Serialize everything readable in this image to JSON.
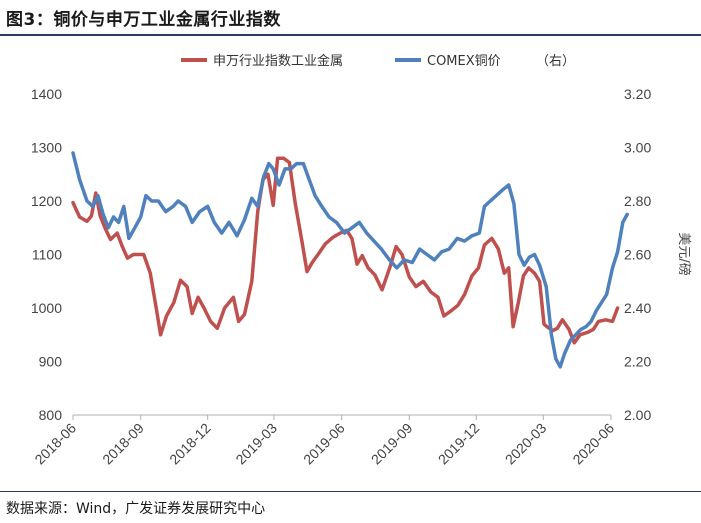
{
  "figure": {
    "title": "图3：铜价与申万工业金属行业指数",
    "source": "数据来源：Wind，广发证券发展研究中心"
  },
  "colors": {
    "series_left": "#c0504d",
    "series_right": "#4f81bd"
  },
  "chart_data": {
    "type": "line",
    "x_ticks": [
      "2018-06",
      "2018-09",
      "2018-12",
      "2019-03",
      "2019-06",
      "2019-09",
      "2019-12",
      "2020-03",
      "2020-06"
    ],
    "y_left": {
      "ticks": [
        "1400",
        "1300",
        "1200",
        "1100",
        "1000",
        "900",
        "800"
      ],
      "range": [
        800,
        1400
      ]
    },
    "y_right": {
      "ticks": [
        "3.20",
        "3.00",
        "2.80",
        "2.60",
        "2.40",
        "2.20",
        "2.00"
      ],
      "range": [
        2.0,
        3.2
      ],
      "label": "美元/磅"
    },
    "legend": {
      "placement": "top",
      "right_note": "（右）"
    },
    "series": [
      {
        "name": "申万行业指数工业金属",
        "axis": "left",
        "points": [
          [
            "2018-06-01",
            1197
          ],
          [
            "2018-06-10",
            1170
          ],
          [
            "2018-06-20",
            1162
          ],
          [
            "2018-06-26",
            1172
          ],
          [
            "2018-07-02",
            1215
          ],
          [
            "2018-07-08",
            1172
          ],
          [
            "2018-07-15",
            1148
          ],
          [
            "2018-07-22",
            1128
          ],
          [
            "2018-07-31",
            1140
          ],
          [
            "2018-08-07",
            1115
          ],
          [
            "2018-08-14",
            1093
          ],
          [
            "2018-08-22",
            1100
          ],
          [
            "2018-09-05",
            1100
          ],
          [
            "2018-09-14",
            1065
          ],
          [
            "2018-09-22",
            1000
          ],
          [
            "2018-09-28",
            950
          ],
          [
            "2018-10-06",
            985
          ],
          [
            "2018-10-16",
            1010
          ],
          [
            "2018-10-25",
            1052
          ],
          [
            "2018-11-03",
            1040
          ],
          [
            "2018-11-10",
            990
          ],
          [
            "2018-11-18",
            1020
          ],
          [
            "2018-11-26",
            1000
          ],
          [
            "2018-12-05",
            975
          ],
          [
            "2018-12-14",
            962
          ],
          [
            "2018-12-24",
            1000
          ],
          [
            "2019-01-05",
            1020
          ],
          [
            "2019-01-12",
            975
          ],
          [
            "2019-01-20",
            988
          ],
          [
            "2019-01-30",
            1050
          ],
          [
            "2019-02-07",
            1180
          ],
          [
            "2019-02-14",
            1240
          ],
          [
            "2019-02-21",
            1250
          ],
          [
            "2019-02-28",
            1192
          ],
          [
            "2019-03-06",
            1280
          ],
          [
            "2019-03-14",
            1280
          ],
          [
            "2019-03-22",
            1272
          ],
          [
            "2019-03-30",
            1195
          ],
          [
            "2019-04-08",
            1125
          ],
          [
            "2019-04-15",
            1068
          ],
          [
            "2019-04-22",
            1085
          ],
          [
            "2019-05-01",
            1102
          ],
          [
            "2019-05-10",
            1120
          ],
          [
            "2019-05-20",
            1132
          ],
          [
            "2019-05-30",
            1140
          ],
          [
            "2019-06-08",
            1145
          ],
          [
            "2019-06-15",
            1130
          ],
          [
            "2019-06-22",
            1082
          ],
          [
            "2019-06-29",
            1098
          ],
          [
            "2019-07-07",
            1075
          ],
          [
            "2019-07-16",
            1062
          ],
          [
            "2019-07-26",
            1034
          ],
          [
            "2019-08-06",
            1078
          ],
          [
            "2019-08-14",
            1115
          ],
          [
            "2019-08-22",
            1100
          ],
          [
            "2019-09-01",
            1058
          ],
          [
            "2019-09-10",
            1040
          ],
          [
            "2019-09-20",
            1050
          ],
          [
            "2019-09-30",
            1030
          ],
          [
            "2019-10-10",
            1020
          ],
          [
            "2019-10-18",
            985
          ],
          [
            "2019-10-28",
            995
          ],
          [
            "2019-11-06",
            1005
          ],
          [
            "2019-11-15",
            1025
          ],
          [
            "2019-11-25",
            1060
          ],
          [
            "2019-12-04",
            1075
          ],
          [
            "2019-12-12",
            1118
          ],
          [
            "2019-12-22",
            1130
          ],
          [
            "2019-12-31",
            1110
          ],
          [
            "2020-01-08",
            1065
          ],
          [
            "2020-01-14",
            1075
          ],
          [
            "2020-01-20",
            965
          ],
          [
            "2020-01-27",
            1010
          ],
          [
            "2020-02-03",
            1060
          ],
          [
            "2020-02-10",
            1075
          ],
          [
            "2020-02-18",
            1065
          ],
          [
            "2020-02-25",
            1050
          ],
          [
            "2020-03-02",
            970
          ],
          [
            "2020-03-08",
            963
          ],
          [
            "2020-03-14",
            958
          ],
          [
            "2020-03-20",
            962
          ],
          [
            "2020-03-27",
            978
          ],
          [
            "2020-04-05",
            960
          ],
          [
            "2020-04-12",
            935
          ],
          [
            "2020-04-20",
            950
          ],
          [
            "2020-05-01",
            955
          ],
          [
            "2020-05-08",
            960
          ],
          [
            "2020-05-15",
            975
          ],
          [
            "2020-05-25",
            978
          ],
          [
            "2020-06-03",
            975
          ],
          [
            "2020-06-10",
            1000
          ]
        ]
      },
      {
        "name": "COMEX铜价",
        "axis": "right",
        "points": [
          [
            "2018-06-01",
            2.98
          ],
          [
            "2018-06-10",
            2.88
          ],
          [
            "2018-06-20",
            2.8
          ],
          [
            "2018-06-28",
            2.78
          ],
          [
            "2018-07-05",
            2.82
          ],
          [
            "2018-07-12",
            2.75
          ],
          [
            "2018-07-19",
            2.7
          ],
          [
            "2018-07-26",
            2.74
          ],
          [
            "2018-08-02",
            2.72
          ],
          [
            "2018-08-09",
            2.78
          ],
          [
            "2018-08-16",
            2.66
          ],
          [
            "2018-08-24",
            2.7
          ],
          [
            "2018-09-01",
            2.74
          ],
          [
            "2018-09-08",
            2.82
          ],
          [
            "2018-09-16",
            2.8
          ],
          [
            "2018-09-25",
            2.8
          ],
          [
            "2018-10-05",
            2.76
          ],
          [
            "2018-10-15",
            2.78
          ],
          [
            "2018-10-22",
            2.8
          ],
          [
            "2018-11-01",
            2.78
          ],
          [
            "2018-11-10",
            2.72
          ],
          [
            "2018-11-20",
            2.76
          ],
          [
            "2018-12-01",
            2.78
          ],
          [
            "2018-12-10",
            2.72
          ],
          [
            "2018-12-20",
            2.68
          ],
          [
            "2018-12-30",
            2.72
          ],
          [
            "2019-01-10",
            2.67
          ],
          [
            "2019-01-20",
            2.73
          ],
          [
            "2019-01-30",
            2.81
          ],
          [
            "2019-02-07",
            2.78
          ],
          [
            "2019-02-15",
            2.89
          ],
          [
            "2019-02-22",
            2.94
          ],
          [
            "2019-02-28",
            2.92
          ],
          [
            "2019-03-08",
            2.86
          ],
          [
            "2019-03-16",
            2.92
          ],
          [
            "2019-03-24",
            2.92
          ],
          [
            "2019-04-01",
            2.94
          ],
          [
            "2019-04-10",
            2.94
          ],
          [
            "2019-04-18",
            2.88
          ],
          [
            "2019-04-26",
            2.82
          ],
          [
            "2019-05-05",
            2.78
          ],
          [
            "2019-05-15",
            2.74
          ],
          [
            "2019-05-25",
            2.72
          ],
          [
            "2019-06-05",
            2.68
          ],
          [
            "2019-06-15",
            2.7
          ],
          [
            "2019-06-25",
            2.72
          ],
          [
            "2019-07-05",
            2.68
          ],
          [
            "2019-07-15",
            2.65
          ],
          [
            "2019-07-25",
            2.62
          ],
          [
            "2019-08-05",
            2.58
          ],
          [
            "2019-08-15",
            2.55
          ],
          [
            "2019-08-25",
            2.58
          ],
          [
            "2019-09-05",
            2.57
          ],
          [
            "2019-09-15",
            2.62
          ],
          [
            "2019-09-25",
            2.6
          ],
          [
            "2019-10-05",
            2.58
          ],
          [
            "2019-10-15",
            2.61
          ],
          [
            "2019-10-25",
            2.62
          ],
          [
            "2019-11-05",
            2.66
          ],
          [
            "2019-11-15",
            2.65
          ],
          [
            "2019-11-25",
            2.67
          ],
          [
            "2019-12-05",
            2.68
          ],
          [
            "2019-12-12",
            2.78
          ],
          [
            "2019-12-20",
            2.8
          ],
          [
            "2019-12-28",
            2.82
          ],
          [
            "2020-01-05",
            2.84
          ],
          [
            "2020-01-14",
            2.86
          ],
          [
            "2020-01-21",
            2.79
          ],
          [
            "2020-01-28",
            2.6
          ],
          [
            "2020-02-04",
            2.56
          ],
          [
            "2020-02-11",
            2.59
          ],
          [
            "2020-02-18",
            2.6
          ],
          [
            "2020-02-25",
            2.56
          ],
          [
            "2020-03-05",
            2.48
          ],
          [
            "2020-03-12",
            2.3
          ],
          [
            "2020-03-18",
            2.21
          ],
          [
            "2020-03-24",
            2.18
          ],
          [
            "2020-03-30",
            2.23
          ],
          [
            "2020-04-07",
            2.28
          ],
          [
            "2020-04-14",
            2.3
          ],
          [
            "2020-04-21",
            2.32
          ],
          [
            "2020-04-28",
            2.33
          ],
          [
            "2020-05-05",
            2.35
          ],
          [
            "2020-05-12",
            2.39
          ],
          [
            "2020-05-19",
            2.42
          ],
          [
            "2020-05-26",
            2.45
          ],
          [
            "2020-06-03",
            2.55
          ],
          [
            "2020-06-10",
            2.61
          ],
          [
            "2020-06-17",
            2.72
          ],
          [
            "2020-06-23",
            2.75
          ]
        ]
      }
    ]
  }
}
